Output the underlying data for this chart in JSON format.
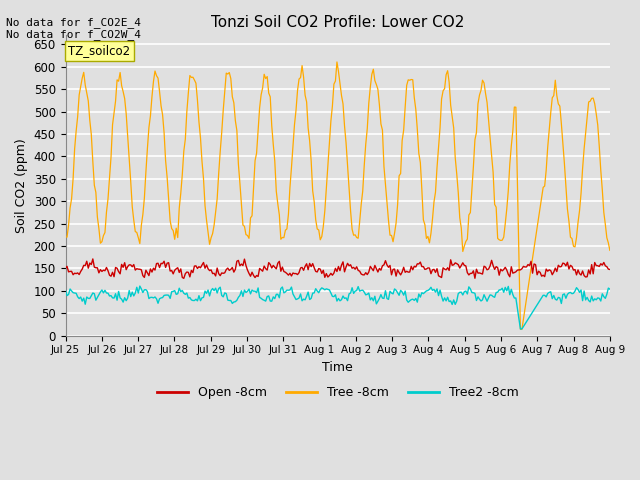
{
  "title": "Tonzi Soil CO2 Profile: Lower CO2",
  "xlabel": "Time",
  "ylabel": "Soil CO2 (ppm)",
  "ylim": [
    0,
    670
  ],
  "yticks": [
    0,
    50,
    100,
    150,
    200,
    250,
    300,
    350,
    400,
    450,
    500,
    550,
    600,
    650
  ],
  "top_annotation_line1": "No data for f_CO2E_4",
  "top_annotation_line2": "No data for f_CO2W_4",
  "box_label": "TZ_soilco2",
  "legend_entries": [
    "Open -8cm",
    "Tree -8cm",
    "Tree2 -8cm"
  ],
  "line_colors": {
    "open": "#cc0000",
    "tree": "#ffaa00",
    "tree2": "#00cccc"
  },
  "bg_color": "#e0e0e0",
  "grid_color": "#ffffff",
  "xtick_dates": [
    "Jul 25",
    "Jul 26",
    "Jul 27",
    "Jul 28",
    "Jul 29",
    "Jul 30",
    "Jul 31",
    "Aug 1",
    "Aug 2",
    "Aug 3",
    "Aug 4",
    "Aug 5",
    "Aug 6",
    "Aug 7",
    "Aug 8",
    "Aug 9"
  ],
  "n_days": 15,
  "seed": 42
}
